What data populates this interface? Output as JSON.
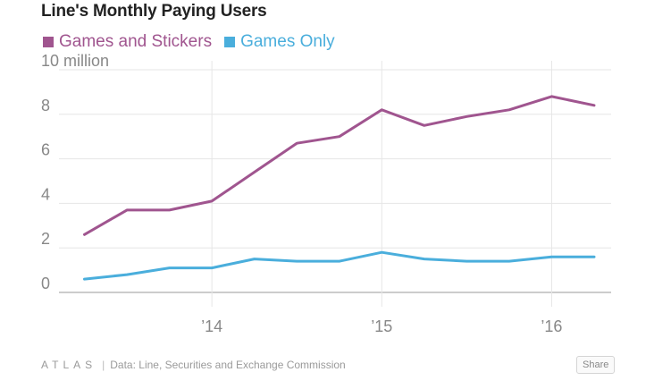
{
  "colors": {
    "series1": "#a0558f",
    "series2": "#4aaedc",
    "grid": "#e6e6e6",
    "axis": "#999999",
    "tick_text": "#888888"
  },
  "legend": [
    {
      "label": "Games and Stickers",
      "color": "#a0558f"
    },
    {
      "label": "Games Only",
      "color": "#4aaedc"
    }
  ],
  "footer": {
    "logo": "ATLAS",
    "separator": "|",
    "source": "Data: Line, Securities and Exchange Commission",
    "share_label": "Share"
  },
  "chart_data": {
    "type": "line",
    "title": "Line's Monthly Paying Users",
    "xlabel": "",
    "ylabel": "",
    "y_unit_label": "10 million",
    "ylim": [
      0,
      10
    ],
    "y_ticks": [
      0,
      2,
      4,
      6,
      8,
      10
    ],
    "y_tick_labels": [
      "0",
      "2",
      "4",
      "6",
      "8",
      "10 million"
    ],
    "x": [
      2013.25,
      2013.5,
      2013.75,
      2014.0,
      2014.25,
      2014.5,
      2014.75,
      2015.0,
      2015.25,
      2015.5,
      2015.75,
      2016.0,
      2016.25
    ],
    "xlim": [
      2013.1,
      2016.35
    ],
    "x_ticks": [
      2014.0,
      2015.0,
      2016.0
    ],
    "x_tick_labels": [
      "’14",
      "’15",
      "’16"
    ],
    "grid": true,
    "series": [
      {
        "name": "Games and Stickers",
        "values": [
          2.6,
          3.7,
          3.7,
          4.1,
          5.4,
          6.7,
          7.0,
          8.2,
          7.5,
          7.9,
          8.2,
          8.8,
          8.4
        ]
      },
      {
        "name": "Games Only",
        "values": [
          0.6,
          0.8,
          1.1,
          1.1,
          1.5,
          1.4,
          1.4,
          1.8,
          1.5,
          1.4,
          1.4,
          1.6,
          1.6
        ]
      }
    ]
  }
}
